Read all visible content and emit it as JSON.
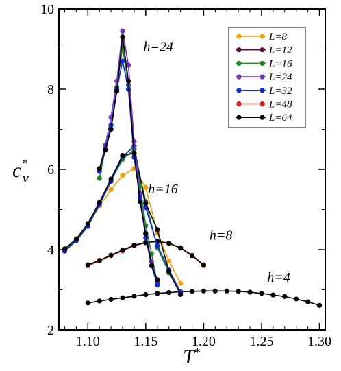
{
  "chart_data": {
    "type": "line",
    "xlabel": "T*",
    "ylabel": "c_v*",
    "xlim": [
      1.075,
      1.305
    ],
    "ylim": [
      2,
      10
    ],
    "xticks": [
      "1.10",
      "1.15",
      "1.20",
      "1.25",
      "1.30"
    ],
    "yticks": [
      "2",
      "4",
      "6",
      "8",
      "10"
    ],
    "grid": false,
    "legend_position": "top-right",
    "series": [
      {
        "name": "L=8",
        "color": "#f5a000"
      },
      {
        "name": "L=12",
        "color": "#5e0a3e"
      },
      {
        "name": "L=16",
        "color": "#1a8a1a"
      },
      {
        "name": "L=24",
        "color": "#7b2fbd"
      },
      {
        "name": "L=32",
        "color": "#0a2ae6"
      },
      {
        "name": "L=48",
        "color": "#e61a1a"
      },
      {
        "name": "L=64",
        "color": "#000000"
      }
    ],
    "annotations": [
      {
        "text": "h=24",
        "x": 1.148,
        "y": 8.95
      },
      {
        "text": "h=16",
        "x": 1.152,
        "y": 5.4
      },
      {
        "text": "h=8",
        "x": 1.205,
        "y": 4.25
      },
      {
        "text": "h=4",
        "x": 1.255,
        "y": 3.2
      }
    ],
    "groups": [
      {
        "label": "h=4",
        "series_data": [
          {
            "series": "L=64",
            "x": [
              1.1,
              1.11,
              1.12,
              1.13,
              1.14,
              1.15,
              1.16,
              1.17,
              1.18,
              1.19,
              1.2,
              1.21,
              1.22,
              1.23,
              1.24,
              1.25,
              1.26,
              1.27,
              1.28,
              1.29,
              1.3
            ],
            "y": [
              2.67,
              2.72,
              2.76,
              2.8,
              2.84,
              2.88,
              2.91,
              2.93,
              2.95,
              2.96,
              2.97,
              2.97,
              2.97,
              2.96,
              2.94,
              2.91,
              2.87,
              2.83,
              2.77,
              2.7,
              2.61
            ]
          }
        ]
      },
      {
        "label": "h=8",
        "series_data": [
          {
            "series": "L=8",
            "x": [
              1.1,
              1.11,
              1.12,
              1.13,
              1.14,
              1.15,
              1.16,
              1.17,
              1.18,
              1.19,
              1.2
            ],
            "y": [
              3.62,
              3.74,
              3.86,
              3.98,
              4.1,
              4.18,
              4.2,
              4.15,
              4.05,
              3.85,
              3.6
            ]
          },
          {
            "series": "L=48",
            "x": [
              1.1,
              1.11,
              1.12,
              1.13,
              1.14,
              1.15,
              1.16,
              1.17,
              1.18,
              1.19,
              1.2
            ],
            "y": [
              3.6,
              3.72,
              3.85,
              3.97,
              4.1,
              4.17,
              4.2,
              4.16,
              4.05,
              3.86,
              3.62
            ]
          },
          {
            "series": "L=64",
            "x": [
              1.1,
              1.11,
              1.12,
              1.13,
              1.14,
              1.15,
              1.16,
              1.17,
              1.18,
              1.19,
              1.2
            ],
            "y": [
              3.62,
              3.73,
              3.86,
              3.99,
              4.11,
              4.18,
              4.21,
              4.16,
              4.04,
              3.85,
              3.61
            ]
          }
        ]
      },
      {
        "label": "h=16",
        "series_data": [
          {
            "series": "L=8",
            "x": [
              1.08,
              1.09,
              1.1,
              1.11,
              1.12,
              1.13,
              1.14,
              1.15,
              1.16,
              1.17,
              1.18
            ],
            "y": [
              4.0,
              4.28,
              4.62,
              5.08,
              5.5,
              5.85,
              6.02,
              5.55,
              4.42,
              3.72,
              3.16
            ]
          },
          {
            "series": "L=16",
            "x": [
              1.08,
              1.09,
              1.1,
              1.11,
              1.12,
              1.13,
              1.14,
              1.15,
              1.16,
              1.17,
              1.18
            ],
            "y": [
              4.0,
              4.25,
              4.62,
              5.15,
              5.72,
              6.25,
              6.5,
              5.2,
              4.05,
              3.42,
              2.92
            ]
          },
          {
            "series": "L=32",
            "x": [
              1.08,
              1.09,
              1.1,
              1.11,
              1.12,
              1.13,
              1.14,
              1.15,
              1.16,
              1.17,
              1.18
            ],
            "y": [
              3.96,
              4.22,
              4.58,
              5.12,
              5.7,
              6.32,
              6.58,
              5.05,
              4.1,
              3.5,
              2.95
            ]
          },
          {
            "series": "L=64",
            "x": [
              1.08,
              1.09,
              1.1,
              1.11,
              1.12,
              1.13,
              1.14,
              1.15,
              1.16,
              1.17,
              1.18
            ],
            "y": [
              4.02,
              4.26,
              4.65,
              5.18,
              5.76,
              6.35,
              6.4,
              5.15,
              4.5,
              3.46,
              2.88
            ]
          }
        ]
      },
      {
        "label": "h=24",
        "series_data": [
          {
            "series": "L=16",
            "x": [
              1.11,
              1.115,
              1.12,
              1.125,
              1.13,
              1.135,
              1.14,
              1.145,
              1.15,
              1.155,
              1.16
            ],
            "y": [
              5.78,
              6.5,
              7.0,
              8.05,
              9.05,
              8.1,
              6.5,
              5.6,
              4.6,
              3.9,
              3.15
            ]
          },
          {
            "series": "L=24",
            "x": [
              1.11,
              1.115,
              1.12,
              1.125,
              1.13,
              1.135,
              1.14,
              1.145,
              1.15,
              1.155,
              1.16
            ],
            "y": [
              6.0,
              6.6,
              7.3,
              8.2,
              9.45,
              8.6,
              6.7,
              5.4,
              4.4,
              3.7,
              3.2
            ]
          },
          {
            "series": "L=32",
            "x": [
              1.11,
              1.115,
              1.12,
              1.125,
              1.13,
              1.135,
              1.14,
              1.145,
              1.15,
              1.155,
              1.16
            ],
            "y": [
              5.95,
              6.5,
              7.1,
              8.0,
              8.7,
              8.0,
              6.3,
              5.3,
              4.3,
              3.6,
              3.12
            ]
          },
          {
            "series": "L=64",
            "x": [
              1.11,
              1.115,
              1.12,
              1.125,
              1.13,
              1.135,
              1.14,
              1.145,
              1.15,
              1.155,
              1.16
            ],
            "y": [
              6.02,
              6.48,
              7.0,
              7.95,
              9.3,
              8.2,
              6.4,
              5.2,
              4.4,
              3.6,
              3.25
            ]
          }
        ]
      }
    ]
  }
}
